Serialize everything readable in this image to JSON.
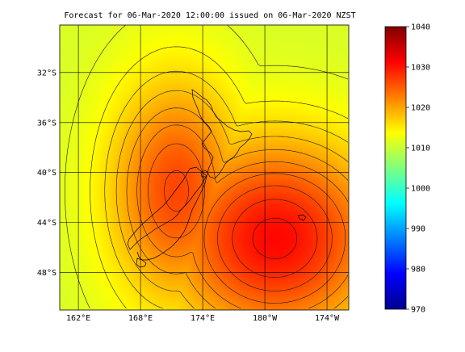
{
  "title": "Forecast for 06-Mar-2020 12:00:00 issued on 06-Mar-2020 NZST",
  "lat_labels": [
    {
      "lat": -32,
      "label": "32°S"
    },
    {
      "lat": -36,
      "label": "36°S"
    },
    {
      "lat": -40,
      "label": "40°S"
    },
    {
      "lat": -44,
      "label": "44°S"
    },
    {
      "lat": -48,
      "label": "48°S"
    }
  ],
  "lon_labels": [
    {
      "lon": 162,
      "label": "162°E"
    },
    {
      "lon": 168,
      "label": "168°E"
    },
    {
      "lon": 174,
      "label": "174°E"
    },
    {
      "lon": 180,
      "label": "180°W"
    },
    {
      "lon": 186,
      "label": "174°W"
    }
  ],
  "map_extent": {
    "lon_min": 160.2,
    "lon_max": 188.1,
    "lat_min": -51.0,
    "lat_max": -28.2
  },
  "colorbar": {
    "min": 970,
    "max": 1040,
    "tick_values": [
      970,
      980,
      990,
      1000,
      1010,
      1020,
      1030,
      1040
    ],
    "tick_labels": [
      "970",
      "980",
      "990",
      "1000",
      "1010",
      "1020",
      "1030",
      "1040"
    ]
  },
  "pressure_field": {
    "units": "hPa",
    "background_value": 1011,
    "highs": [
      {
        "lon": 181.0,
        "lat": -45.3,
        "value": 1030.8
      },
      {
        "lon": 171.5,
        "lat": -41.5,
        "value": 1026.5
      }
    ],
    "contour_interval": 2
  },
  "colors": {
    "grid": "#000000",
    "coast": "#000000",
    "contour": "#1a1a1a",
    "colormap": [
      "#00008f",
      "#0000ff",
      "#007fff",
      "#00ffff",
      "#7fff7f",
      "#ffff00",
      "#ff7f00",
      "#ff0000",
      "#800000"
    ]
  }
}
